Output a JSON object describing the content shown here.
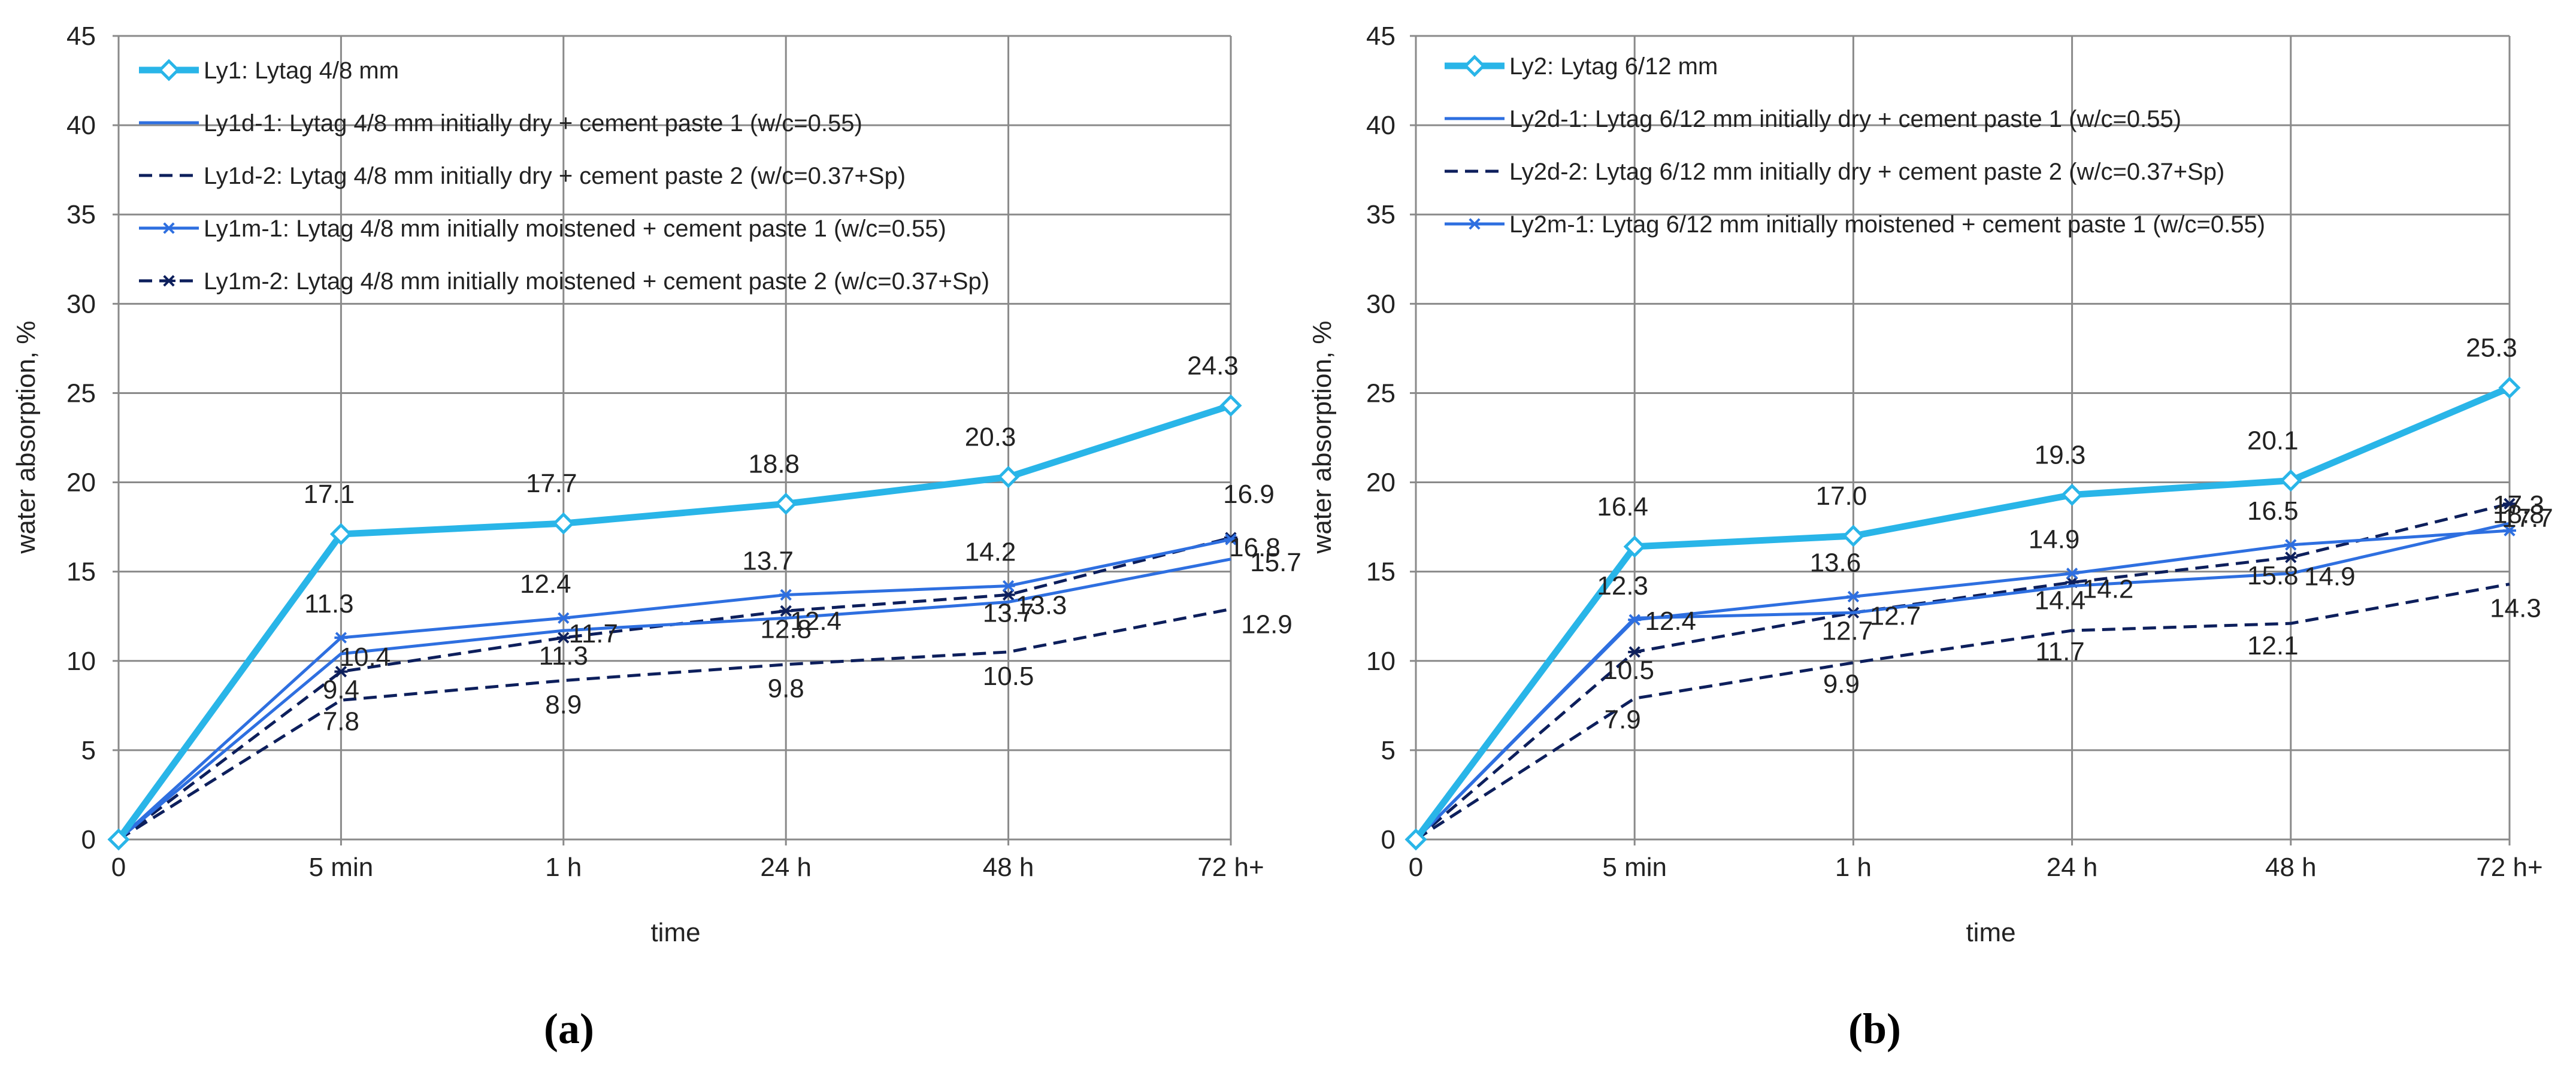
{
  "colors": {
    "light_blue": "#29b5e8",
    "mid_blue": "#2e6fe0",
    "dark_navy": "#0d1f5c",
    "grid": "#8a8a8a",
    "text": "#222222"
  },
  "chart_data": [
    {
      "type": "line",
      "panel_label": "(a)",
      "xlabel": "time",
      "ylabel": "water absorption, %",
      "categories": [
        "0",
        "5 min",
        "1 h",
        "24 h",
        "48 h",
        "72 h+"
      ],
      "ylim": [
        0,
        45
      ],
      "yticks": [
        0,
        5,
        10,
        15,
        20,
        25,
        30,
        35,
        40,
        45
      ],
      "grid": "vertical and horizontal",
      "legend_position": "top-left",
      "series": [
        {
          "name": "Ly1: Lytag 4/8 mm",
          "values": [
            0,
            17.1,
            17.7,
            18.8,
            20.3,
            24.3
          ],
          "labels": [
            "",
            "17.1",
            "17.7",
            "18.8",
            "20.3",
            "24.3"
          ],
          "color": "#29b5e8",
          "style": "solid-thick",
          "marker": "diamond"
        },
        {
          "name": "Ly1d-1: Lytag 4/8 mm initially dry + cement paste 1 (w/c=0.55)",
          "values": [
            0,
            10.4,
            11.7,
            12.4,
            13.3,
            15.7
          ],
          "labels": [
            "",
            "10.4",
            "11.7",
            "12.4",
            "13.3",
            "15.7"
          ],
          "color": "#2e6fe0",
          "style": "solid",
          "marker": "none"
        },
        {
          "name": "Ly1d-2: Lytag 4/8 mm initially dry + cement paste 2 (w/c=0.37+Sp)",
          "values": [
            0,
            7.8,
            8.9,
            9.8,
            10.5,
            12.9
          ],
          "labels": [
            "",
            "7.8",
            "8.9",
            "9.8",
            "10.5",
            "12.9"
          ],
          "color": "#0d1f5c",
          "style": "dashed",
          "marker": "none"
        },
        {
          "name": "Ly1m-1: Lytag 4/8 mm initially moistened + cement paste 1 (w/c=0.55)",
          "values": [
            0,
            11.3,
            12.4,
            13.7,
            14.2,
            16.8
          ],
          "labels": [
            "",
            "11.3",
            "12.4",
            "13.7",
            "14.2",
            "16.8"
          ],
          "color": "#2e6fe0",
          "style": "solid",
          "marker": "star"
        },
        {
          "name": "Ly1m-2: Lytag 4/8 mm initially moistened + cement paste 2 (w/c=0.37+Sp)",
          "values": [
            0,
            9.4,
            11.3,
            12.8,
            13.7,
            16.9
          ],
          "labels": [
            "",
            "9.4",
            "11.3",
            "12.8",
            "13.7",
            "16.9"
          ],
          "color": "#0d1f5c",
          "style": "dashed",
          "marker": "star"
        }
      ]
    },
    {
      "type": "line",
      "panel_label": "(b)",
      "xlabel": "time",
      "ylabel": "water absorption, %",
      "categories": [
        "0",
        "5 min",
        "1 h",
        "24 h",
        "48 h",
        "72 h+"
      ],
      "ylim": [
        0,
        45
      ],
      "yticks": [
        0,
        5,
        10,
        15,
        20,
        25,
        30,
        35,
        40,
        45
      ],
      "grid": "vertical and horizontal",
      "legend_position": "top-left",
      "series": [
        {
          "name": "Ly2: Lytag 6/12 mm",
          "values": [
            0,
            16.4,
            17.0,
            19.3,
            20.1,
            25.3
          ],
          "labels": [
            "",
            "16.4",
            "17.0",
            "19.3",
            "20.1",
            "25.3"
          ],
          "color": "#29b5e8",
          "style": "solid-thick",
          "marker": "diamond"
        },
        {
          "name": "Ly2d-1: Lytag 6/12 mm initially dry + cement paste 1 (w/c=0.55)",
          "values": [
            0,
            12.4,
            12.7,
            14.2,
            14.9,
            17.7
          ],
          "labels": [
            "",
            "12.4",
            "12.7",
            "14.2",
            "14.9",
            "17.7"
          ],
          "color": "#2e6fe0",
          "style": "solid",
          "marker": "none"
        },
        {
          "name": "Ly2d-2: Lytag 6/12 mm initially dry + cement paste 2 (w/c=0.37+Sp)",
          "values": [
            0,
            7.9,
            9.9,
            11.7,
            12.1,
            14.3
          ],
          "labels": [
            "",
            "7.9",
            "9.9",
            "11.7",
            "12.1",
            "14.3"
          ],
          "color": "#0d1f5c",
          "style": "dashed",
          "marker": "none"
        },
        {
          "name": "Ly2m-1: Lytag 6/12 mm initially moistened + cement paste 1 (w/c=0.55)",
          "values": [
            0,
            12.3,
            13.6,
            14.9,
            16.5,
            17.3
          ],
          "labels": [
            "",
            "12.3",
            "13.6",
            "14.9",
            "16.5",
            "17.3"
          ],
          "color": "#2e6fe0",
          "style": "solid",
          "marker": "star"
        },
        {
          "name": "",
          "values": [
            0,
            10.5,
            12.7,
            14.4,
            15.8,
            18.8
          ],
          "labels": [
            "",
            "10.5",
            "12.7",
            "14.4",
            "15.8",
            "18.8"
          ],
          "color": "#0d1f5c",
          "style": "dashed",
          "marker": "star"
        }
      ]
    }
  ]
}
